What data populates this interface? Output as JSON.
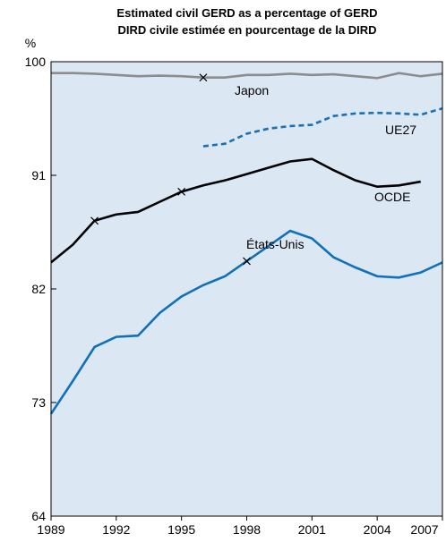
{
  "chart_data": {
    "type": "line",
    "title": "Estimated civil GERD as a percentage of GERD",
    "subtitle": "DIRD civile estimée en pourcentage de la DIRD",
    "ylabel": "%",
    "x": [
      1989,
      1990,
      1991,
      1992,
      1993,
      1994,
      1995,
      1996,
      1997,
      1998,
      1999,
      2000,
      2001,
      2002,
      2003,
      2004,
      2005,
      2006,
      2007
    ],
    "series": [
      {
        "name": "Japon",
        "color": "#8c8c8c",
        "dash": false,
        "values": [
          99.1,
          99.1,
          99.05,
          98.95,
          98.85,
          98.9,
          98.85,
          98.75,
          98.75,
          98.95,
          98.95,
          99.05,
          98.95,
          99.0,
          98.85,
          98.7,
          99.1,
          98.85,
          99.05
        ]
      },
      {
        "name": "UE27",
        "color": "#1a6fb5",
        "dash": true,
        "values": [
          null,
          null,
          null,
          null,
          null,
          null,
          null,
          93.3,
          93.5,
          94.3,
          94.7,
          94.9,
          95.0,
          95.7,
          95.9,
          95.95,
          95.9,
          95.8,
          96.3
        ]
      },
      {
        "name": "OCDE",
        "color": "#000000",
        "dash": false,
        "values": [
          84.1,
          85.5,
          87.4,
          87.9,
          88.1,
          88.9,
          89.7,
          90.2,
          90.6,
          91.1,
          91.6,
          92.1,
          92.3,
          91.4,
          90.6,
          90.1,
          90.2,
          90.5,
          null
        ]
      },
      {
        "name": "États-Unis",
        "color": "#1170b8",
        "dash": false,
        "values": [
          72.1,
          74.7,
          77.4,
          78.2,
          78.3,
          80.1,
          81.4,
          82.3,
          83.0,
          84.2,
          85.4,
          86.6,
          86.0,
          84.5,
          83.7,
          83.0,
          82.9,
          83.3,
          84.1
        ]
      }
    ],
    "xlim": [
      1989,
      2007
    ],
    "xticks": [
      1989,
      1992,
      1995,
      1998,
      2001,
      2004,
      2007
    ],
    "ylim": [
      64,
      100
    ],
    "yticks": [
      64,
      73,
      82,
      91,
      100
    ],
    "background": "#dbe8f4"
  }
}
